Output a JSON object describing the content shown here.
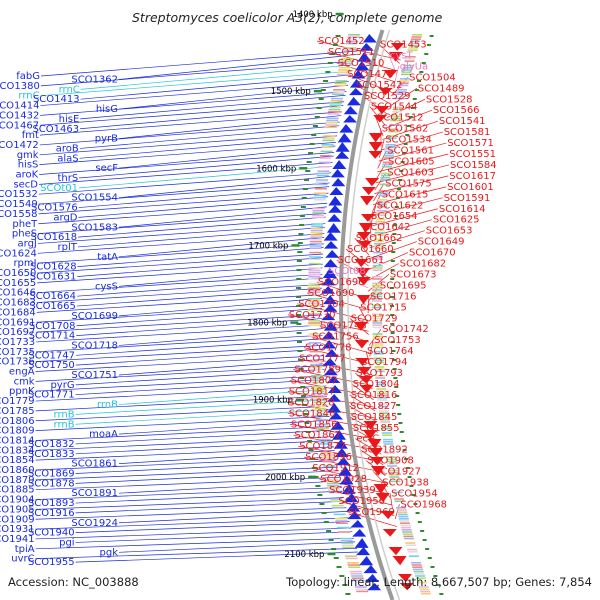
{
  "title": "Streptomyces coelicolor A3(2), complete genome",
  "footer": {
    "accession": "Accession: NC_003888",
    "summary": "Topology: linear; Length: 8,667,507 bp; Genes: 7,854"
  },
  "kbp_ticks": [
    "1400 kbp",
    "1500 kbp",
    "1600 kbp",
    "1700 kbp",
    "1800 kbp",
    "1900 kbp",
    "2000 kbp",
    "2100 kbp"
  ],
  "colors": {
    "forward": "#e8191a",
    "reverse": "#1a2be0",
    "rrna": "#22c4d8",
    "trna": "#e879c8",
    "backbone": "#9a9a9a",
    "tick": "#2e8b2e"
  },
  "left_labels": [
    {
      "t": "fabG",
      "k": "g"
    },
    {
      "t": "SCO1362",
      "k": "g"
    },
    {
      "t": "SCO1380",
      "k": "g"
    },
    {
      "t": "rrnC",
      "k": "r"
    },
    {
      "t": "rrnC",
      "k": "r"
    },
    {
      "t": "SCO1413",
      "k": "g"
    },
    {
      "t": "SCO1414",
      "k": "g"
    },
    {
      "t": "hisG",
      "k": "g"
    },
    {
      "t": "SCO1432",
      "k": "g"
    },
    {
      "t": "hisE",
      "k": "g"
    },
    {
      "t": "SCO1467",
      "k": "g"
    },
    {
      "t": "SCO1463",
      "k": "g"
    },
    {
      "t": "fmt",
      "k": "g"
    },
    {
      "t": "pyrB",
      "k": "g"
    },
    {
      "t": "SCO1472",
      "k": "g"
    },
    {
      "t": "aroB",
      "k": "g"
    },
    {
      "t": "gmk",
      "k": "g"
    },
    {
      "t": "alaS",
      "k": "g"
    },
    {
      "t": "hisS",
      "k": "g"
    },
    {
      "t": "secF",
      "k": "g"
    },
    {
      "t": "aroK",
      "k": "g"
    },
    {
      "t": "thrS",
      "k": "g"
    },
    {
      "t": "secD",
      "k": "g"
    },
    {
      "t": "SCOt01",
      "k": "r"
    },
    {
      "t": "SCO1532",
      "k": "g"
    },
    {
      "t": "SCO1554",
      "k": "g"
    },
    {
      "t": "SCO1549",
      "k": "g"
    },
    {
      "t": "SCO1576",
      "k": "g"
    },
    {
      "t": "SCO1558",
      "k": "g"
    },
    {
      "t": "argD",
      "k": "g"
    },
    {
      "t": "pheT",
      "k": "g"
    },
    {
      "t": "SCO1583",
      "k": "g"
    },
    {
      "t": "pheS",
      "k": "g"
    },
    {
      "t": "SCO1618",
      "k": "g"
    },
    {
      "t": "argJ",
      "k": "g"
    },
    {
      "t": "rplT",
      "k": "g"
    },
    {
      "t": "SCO1624",
      "k": "g"
    },
    {
      "t": "tatA",
      "k": "g"
    },
    {
      "t": "rpmI",
      "k": "g"
    },
    {
      "t": "SCO1628",
      "k": "g"
    },
    {
      "t": "SCO1650",
      "k": "g"
    },
    {
      "t": "SCO1631",
      "k": "g"
    },
    {
      "t": "SCO1655",
      "k": "g"
    },
    {
      "t": "cysS",
      "k": "g"
    },
    {
      "t": "SCO1646",
      "k": "g"
    },
    {
      "t": "SCO1664",
      "k": "g"
    },
    {
      "t": "SCO1683",
      "k": "g"
    },
    {
      "t": "SCO1665",
      "k": "g"
    },
    {
      "t": "SCO1684",
      "k": "g"
    },
    {
      "t": "SCO1699",
      "k": "g"
    },
    {
      "t": "SCO1691",
      "k": "g"
    },
    {
      "t": "SCO1708",
      "k": "g"
    },
    {
      "t": "SCO1697",
      "k": "g"
    },
    {
      "t": "SCO1714",
      "k": "g"
    },
    {
      "t": "SCO1733",
      "k": "g"
    },
    {
      "t": "SCO1718",
      "k": "g"
    },
    {
      "t": "SCO1735",
      "k": "g"
    },
    {
      "t": "SCO1747",
      "k": "g"
    },
    {
      "t": "SCO1736",
      "k": "g"
    },
    {
      "t": "SCO1750",
      "k": "g"
    },
    {
      "t": "engA",
      "k": "g"
    },
    {
      "t": "SCO1751",
      "k": "g"
    },
    {
      "t": "cmk",
      "k": "g"
    },
    {
      "t": "pyrG",
      "k": "g"
    },
    {
      "t": "ppnK",
      "k": "g"
    },
    {
      "t": "SCO1771",
      "k": "g"
    },
    {
      "t": "SCO1779",
      "k": "g"
    },
    {
      "t": "rrnB",
      "k": "r"
    },
    {
      "t": "SCO1785",
      "k": "g"
    },
    {
      "t": "rrnB",
      "k": "r"
    },
    {
      "t": "SCO1806",
      "k": "g"
    },
    {
      "t": "rrnB",
      "k": "r"
    },
    {
      "t": "SCO1809",
      "k": "g"
    },
    {
      "t": "moaA",
      "k": "g"
    },
    {
      "t": "SCO1814",
      "k": "g"
    },
    {
      "t": "SCO1832",
      "k": "g"
    },
    {
      "t": "SCO1834",
      "k": "g"
    },
    {
      "t": "SCO1833",
      "k": "g"
    },
    {
      "t": "SCO1854",
      "k": "g"
    },
    {
      "t": "SCO1861",
      "k": "g"
    },
    {
      "t": "SCO1860",
      "k": "g"
    },
    {
      "t": "SCO1869",
      "k": "g"
    },
    {
      "t": "SCO1879",
      "k": "g"
    },
    {
      "t": "SCO1878",
      "k": "g"
    },
    {
      "t": "SCO1885",
      "k": "g"
    },
    {
      "t": "SCO1891",
      "k": "g"
    },
    {
      "t": "SCO1904",
      "k": "g"
    },
    {
      "t": "SCO1893",
      "k": "g"
    },
    {
      "t": "SCO1905",
      "k": "g"
    },
    {
      "t": "SCO1916",
      "k": "g"
    },
    {
      "t": "SCO1909",
      "k": "g"
    },
    {
      "t": "SCO1924",
      "k": "g"
    },
    {
      "t": "SCO1931",
      "k": "g"
    },
    {
      "t": "SCO1940",
      "k": "g"
    },
    {
      "t": "SCO1941",
      "k": "g"
    },
    {
      "t": "pgi",
      "k": "g"
    },
    {
      "t": "tpiA",
      "k": "g"
    },
    {
      "t": "pgk",
      "k": "g"
    },
    {
      "t": "uvrC",
      "k": "g"
    },
    {
      "t": "SCO1955",
      "k": "g"
    }
  ],
  "right_labels": [
    {
      "t": "SCO1452",
      "k": "g"
    },
    {
      "t": "SCO1453",
      "k": "g"
    },
    {
      "t": "SCO1511",
      "k": "g"
    },
    {
      "t": "cysT",
      "k": "t"
    },
    {
      "t": "SCO1510",
      "k": "g"
    },
    {
      "t": "glyUa",
      "k": "t"
    },
    {
      "t": "SCO1474",
      "k": "g"
    },
    {
      "t": "SCO1504",
      "k": "g"
    },
    {
      "t": "SCO1542",
      "k": "g"
    },
    {
      "t": "SCO1489",
      "k": "g"
    },
    {
      "t": "SCO1529",
      "k": "g"
    },
    {
      "t": "SCO1528",
      "k": "g"
    },
    {
      "t": "SCO1544",
      "k": "g"
    },
    {
      "t": "SCO1566",
      "k": "g"
    },
    {
      "t": "SCO1512",
      "k": "g"
    },
    {
      "t": "SCO1541",
      "k": "g"
    },
    {
      "t": "SCO1562",
      "k": "g"
    },
    {
      "t": "SCO1581",
      "k": "g"
    },
    {
      "t": "SCO1534",
      "k": "g"
    },
    {
      "t": "SCO1571",
      "k": "g"
    },
    {
      "t": "SCO1561",
      "k": "g"
    },
    {
      "t": "SCO1551",
      "k": "g"
    },
    {
      "t": "SCO1605",
      "k": "g"
    },
    {
      "t": "SCO1584",
      "k": "g"
    },
    {
      "t": "SCO1603",
      "k": "g"
    },
    {
      "t": "SCO1617",
      "k": "g"
    },
    {
      "t": "SCO1575",
      "k": "g"
    },
    {
      "t": "SCO1601",
      "k": "g"
    },
    {
      "t": "SCO1615",
      "k": "g"
    },
    {
      "t": "SCO1591",
      "k": "g"
    },
    {
      "t": "SCO1622",
      "k": "g"
    },
    {
      "t": "SCO1614",
      "k": "g"
    },
    {
      "t": "SCO1654",
      "k": "g"
    },
    {
      "t": "SCO1625",
      "k": "g"
    },
    {
      "t": "SCO1642",
      "k": "g"
    },
    {
      "t": "SCO1653",
      "k": "g"
    },
    {
      "t": "SCO1662",
      "k": "g"
    },
    {
      "t": "SCO1649",
      "k": "g"
    },
    {
      "t": "SCO1660",
      "k": "g"
    },
    {
      "t": "SCO1670",
      "k": "g"
    },
    {
      "t": "SCO1661",
      "k": "g"
    },
    {
      "t": "SCO1682",
      "k": "g"
    },
    {
      "t": "SCOt08",
      "k": "t"
    },
    {
      "t": "SCO1673",
      "k": "g"
    },
    {
      "t": "SCO1696",
      "k": "g"
    },
    {
      "t": "SCO1695",
      "k": "g"
    },
    {
      "t": "SCO1690",
      "k": "g"
    },
    {
      "t": "SCO1716",
      "k": "g"
    },
    {
      "t": "SCO1704",
      "k": "g"
    },
    {
      "t": "SCO1715",
      "k": "g"
    },
    {
      "t": "SCO1730",
      "k": "g"
    },
    {
      "t": "SCO1729",
      "k": "g"
    },
    {
      "t": "SCO1743",
      "k": "g"
    },
    {
      "t": "SCO1742",
      "k": "g"
    },
    {
      "t": "SCO1756",
      "k": "g"
    },
    {
      "t": "SCO1753",
      "k": "g"
    },
    {
      "t": "SCO1778",
      "k": "g"
    },
    {
      "t": "SCO1764",
      "k": "g"
    },
    {
      "t": "SCO1777",
      "k": "g"
    },
    {
      "t": "SCO1794",
      "k": "g"
    },
    {
      "t": "SCO1789",
      "k": "g"
    },
    {
      "t": "SCO1793",
      "k": "g"
    },
    {
      "t": "SCO1807",
      "k": "g"
    },
    {
      "t": "SCO1804",
      "k": "g"
    },
    {
      "t": "SCO1817",
      "k": "g"
    },
    {
      "t": "SCO1816",
      "k": "g"
    },
    {
      "t": "SCO1828",
      "k": "g"
    },
    {
      "t": "SCO1827",
      "k": "g"
    },
    {
      "t": "SCO1846",
      "k": "g"
    },
    {
      "t": "SCO1845",
      "k": "g"
    },
    {
      "t": "SCO1856",
      "k": "g"
    },
    {
      "t": "SCO1855",
      "k": "g"
    },
    {
      "t": "SCO1867",
      "k": "g"
    },
    {
      "t": "ectC",
      "k": "g"
    },
    {
      "t": "SCO1877",
      "k": "g"
    },
    {
      "t": "SCO1892",
      "k": "g"
    },
    {
      "t": "SCO1896",
      "k": "g"
    },
    {
      "t": "SCO1908",
      "k": "g"
    },
    {
      "t": "SCO1912",
      "k": "g"
    },
    {
      "t": "SCO1927",
      "k": "g"
    },
    {
      "t": "SCO1928",
      "k": "g"
    },
    {
      "t": "SCO1938",
      "k": "g"
    },
    {
      "t": "SCO1939",
      "k": "g"
    },
    {
      "t": "SCO1954",
      "k": "g"
    },
    {
      "t": "SCO1956",
      "k": "g"
    },
    {
      "t": "SCO1968",
      "k": "g"
    },
    {
      "t": "SCO1969",
      "k": "g"
    }
  ]
}
